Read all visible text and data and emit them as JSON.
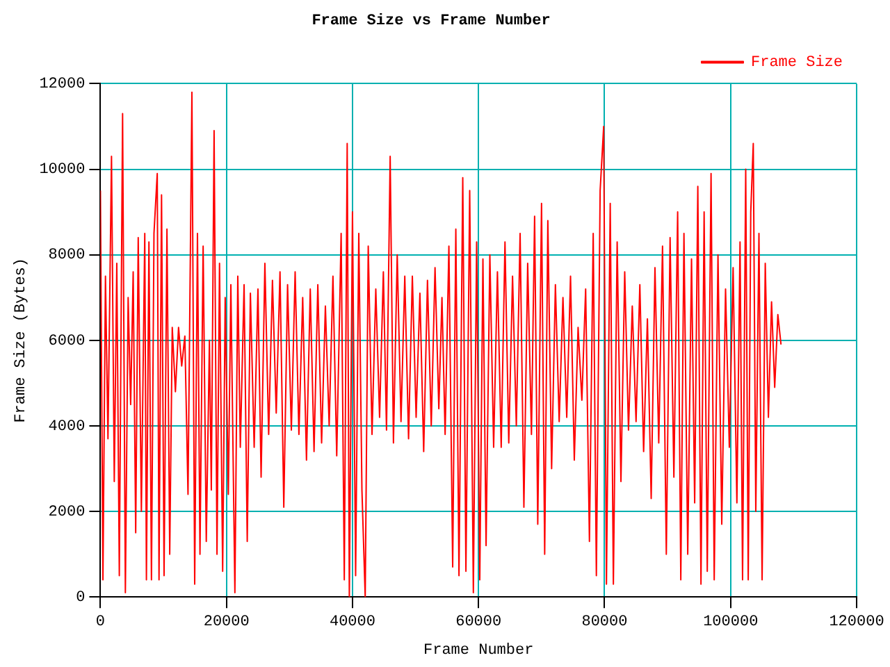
{
  "chart_data": {
    "type": "line",
    "title": "Frame Size vs Frame Number",
    "xlabel": "Frame Number",
    "ylabel": "Frame Size (Bytes)",
    "x": [
      0,
      400,
      800,
      1200,
      1760,
      2200,
      2600,
      3000,
      3520,
      3960,
      4400,
      4800,
      5200,
      5600,
      6000,
      6500,
      7040,
      7300,
      7700,
      8100,
      8500,
      9020,
      9300,
      9700,
      10100,
      10560,
      11000,
      11400,
      11900,
      12400,
      12900,
      13400,
      13900,
      14300,
      14520,
      14960,
      15400,
      15800,
      16300,
      16800,
      17300,
      17600,
      18040,
      18500,
      18900,
      19400,
      19800,
      20300,
      20700,
      21340,
      21800,
      22200,
      22800,
      23300,
      23800,
      24400,
      25000,
      25500,
      26100,
      26700,
      27300,
      27900,
      28500,
      29100,
      29700,
      30300,
      30900,
      31500,
      32100,
      32700,
      33300,
      33900,
      34500,
      35100,
      35700,
      36300,
      36900,
      37500,
      38200,
      38700,
      39160,
      39500,
      40000,
      40500,
      41000,
      41500,
      42020,
      42500,
      43100,
      43700,
      44300,
      44900,
      45400,
      45980,
      46500,
      47100,
      47700,
      48300,
      48900,
      49500,
      50100,
      50700,
      51300,
      51900,
      52500,
      53100,
      53700,
      54200,
      54700,
      55300,
      55900,
      56400,
      56900,
      57500,
      58000,
      58600,
      59180,
      59700,
      60200,
      60700,
      61200,
      61800,
      62400,
      63000,
      63600,
      64200,
      64800,
      65400,
      66000,
      66600,
      67200,
      67800,
      68400,
      68900,
      69400,
      70000,
      70500,
      71000,
      71600,
      72200,
      72800,
      73400,
      74000,
      74600,
      75200,
      75800,
      76400,
      77000,
      77600,
      78200,
      78700,
      79300,
      79860,
      80300,
      80900,
      81400,
      82000,
      82600,
      83200,
      83800,
      84400,
      85000,
      85600,
      86200,
      86800,
      87400,
      88000,
      88600,
      89200,
      89800,
      90400,
      91000,
      91600,
      92100,
      92600,
      93200,
      93800,
      94300,
      94800,
      95300,
      95800,
      96300,
      96900,
      97400,
      98000,
      98600,
      99200,
      99800,
      100400,
      101000,
      101500,
      101900,
      102400,
      102800,
      103200,
      103600,
      104000,
      104500,
      105000,
      105500,
      106000,
      106500,
      107000,
      107500,
      108000
    ],
    "series": [
      {
        "name": "Frame Size",
        "color": "#ff0000",
        "values": [
          9500,
          400,
          7500,
          3700,
          10300,
          2700,
          7800,
          500,
          11300,
          100,
          7000,
          4500,
          7600,
          1500,
          8400,
          2000,
          8500,
          400,
          8300,
          400,
          8500,
          9900,
          400,
          9400,
          500,
          8600,
          1000,
          6300,
          4800,
          6300,
          5400,
          6100,
          2400,
          8400,
          11800,
          300,
          8500,
          1000,
          8200,
          1300,
          6000,
          2500,
          10900,
          1000,
          7800,
          600,
          7000,
          2400,
          7300,
          100,
          7500,
          3500,
          7300,
          1300,
          7100,
          3500,
          7200,
          2800,
          7800,
          3800,
          7400,
          4300,
          7600,
          2100,
          7300,
          3900,
          7600,
          3800,
          7000,
          3200,
          7200,
          3400,
          7300,
          3600,
          6800,
          4000,
          7500,
          3300,
          8500,
          400,
          10600,
          0,
          9000,
          500,
          8500,
          2500,
          0,
          8200,
          3800,
          7200,
          4200,
          7600,
          3900,
          10300,
          3600,
          8000,
          4100,
          7500,
          3700,
          7500,
          4200,
          7100,
          3400,
          7400,
          4000,
          7700,
          4400,
          7000,
          3800,
          8200,
          700,
          8600,
          500,
          9800,
          600,
          9500,
          100,
          8300,
          400,
          7900,
          1200,
          8000,
          3500,
          7600,
          3500,
          8300,
          3600,
          7500,
          4000,
          8500,
          2100,
          7800,
          3800,
          8900,
          1700,
          9200,
          1000,
          8800,
          3000,
          7300,
          4100,
          7000,
          4200,
          7500,
          3200,
          6300,
          4600,
          7200,
          1300,
          8500,
          500,
          9500,
          11000,
          300,
          9200,
          300,
          8300,
          2700,
          7600,
          3900,
          6800,
          4100,
          7300,
          3400,
          6500,
          2300,
          7700,
          3600,
          8200,
          1000,
          8400,
          2800,
          9000,
          400,
          8500,
          1000,
          7900,
          2200,
          9600,
          300,
          9000,
          600,
          9900,
          400,
          8000,
          1700,
          7200,
          3500,
          7700,
          2200,
          8300,
          400,
          10000,
          400,
          9000,
          10600,
          2000,
          8500,
          400,
          7800,
          4200,
          6900,
          4900,
          6600,
          5900
        ]
      }
    ],
    "xlim": [
      0,
      120000
    ],
    "xticks": [
      0,
      20000,
      40000,
      60000,
      80000,
      100000,
      120000
    ],
    "ylim": [
      0,
      12000
    ],
    "yticks": [
      0,
      2000,
      4000,
      6000,
      8000,
      10000,
      12000
    ],
    "grid": true,
    "legend": "top right",
    "marker": "none",
    "line_style": "solid"
  }
}
